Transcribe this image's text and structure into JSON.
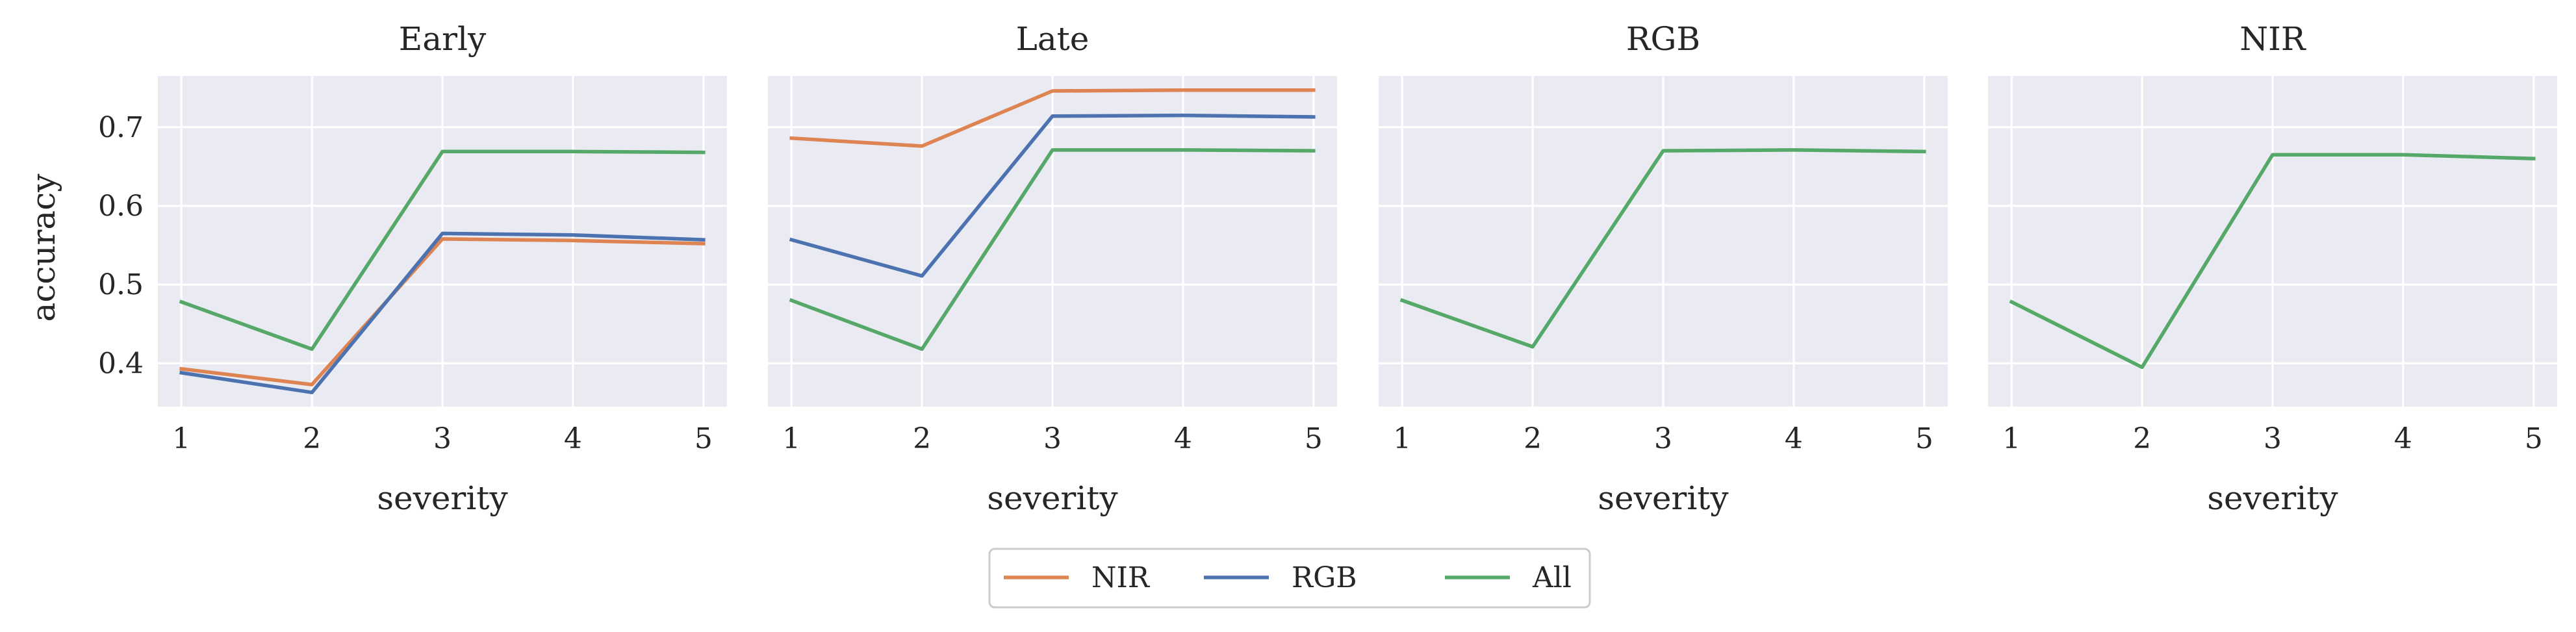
{
  "chart_data": [
    {
      "type": "line",
      "title": "Early",
      "xlabel": "severity",
      "ylabel": "accuracy",
      "x": [
        1,
        2,
        3,
        4,
        5
      ],
      "xlim": [
        0.82,
        5.18
      ],
      "ylim": [
        0.345,
        0.765
      ],
      "yticks": [
        0.4,
        0.5,
        0.6,
        0.7
      ],
      "grid": true,
      "series": [
        {
          "name": "NIR",
          "color": "#dd8452",
          "values": [
            0.393,
            0.373,
            0.558,
            0.556,
            0.552
          ]
        },
        {
          "name": "RGB",
          "color": "#4c72b0",
          "values": [
            0.388,
            0.363,
            0.565,
            0.563,
            0.557
          ]
        },
        {
          "name": "All",
          "color": "#55a868",
          "values": [
            0.478,
            0.418,
            0.669,
            0.669,
            0.668
          ]
        }
      ]
    },
    {
      "type": "line",
      "title": "Late",
      "xlabel": "severity",
      "ylabel": "",
      "x": [
        1,
        2,
        3,
        4,
        5
      ],
      "xlim": [
        0.82,
        5.18
      ],
      "ylim": [
        0.345,
        0.765
      ],
      "yticks": [
        0.4,
        0.5,
        0.6,
        0.7
      ],
      "grid": true,
      "series": [
        {
          "name": "NIR",
          "color": "#dd8452",
          "values": [
            0.686,
            0.676,
            0.746,
            0.747,
            0.747
          ]
        },
        {
          "name": "RGB",
          "color": "#4c72b0",
          "values": [
            0.557,
            0.511,
            0.714,
            0.715,
            0.713
          ]
        },
        {
          "name": "All",
          "color": "#55a868",
          "values": [
            0.48,
            0.418,
            0.671,
            0.671,
            0.67
          ]
        }
      ]
    },
    {
      "type": "line",
      "title": "RGB",
      "xlabel": "severity",
      "ylabel": "",
      "x": [
        1,
        2,
        3,
        4,
        5
      ],
      "xlim": [
        0.82,
        5.18
      ],
      "ylim": [
        0.345,
        0.765
      ],
      "yticks": [
        0.4,
        0.5,
        0.6,
        0.7
      ],
      "grid": true,
      "series": [
        {
          "name": "All",
          "color": "#55a868",
          "values": [
            0.48,
            0.421,
            0.67,
            0.671,
            0.669
          ]
        }
      ]
    },
    {
      "type": "line",
      "title": "NIR",
      "xlabel": "severity",
      "ylabel": "",
      "x": [
        1,
        2,
        3,
        4,
        5
      ],
      "xlim": [
        0.82,
        5.18
      ],
      "ylim": [
        0.345,
        0.765
      ],
      "yticks": [
        0.4,
        0.5,
        0.6,
        0.7
      ],
      "grid": true,
      "series": [
        {
          "name": "All",
          "color": "#55a868",
          "values": [
            0.478,
            0.395,
            0.665,
            0.665,
            0.66
          ]
        }
      ]
    }
  ],
  "legend": {
    "placement": "bottom-center",
    "entries": [
      {
        "label": "NIR",
        "color": "#dd8452"
      },
      {
        "label": "RGB",
        "color": "#4c72b0"
      },
      {
        "label": "All",
        "color": "#55a868"
      }
    ]
  },
  "style": {
    "axes_background": "#eaeaf2",
    "grid_color": "#ffffff",
    "text_color": "#262626"
  }
}
